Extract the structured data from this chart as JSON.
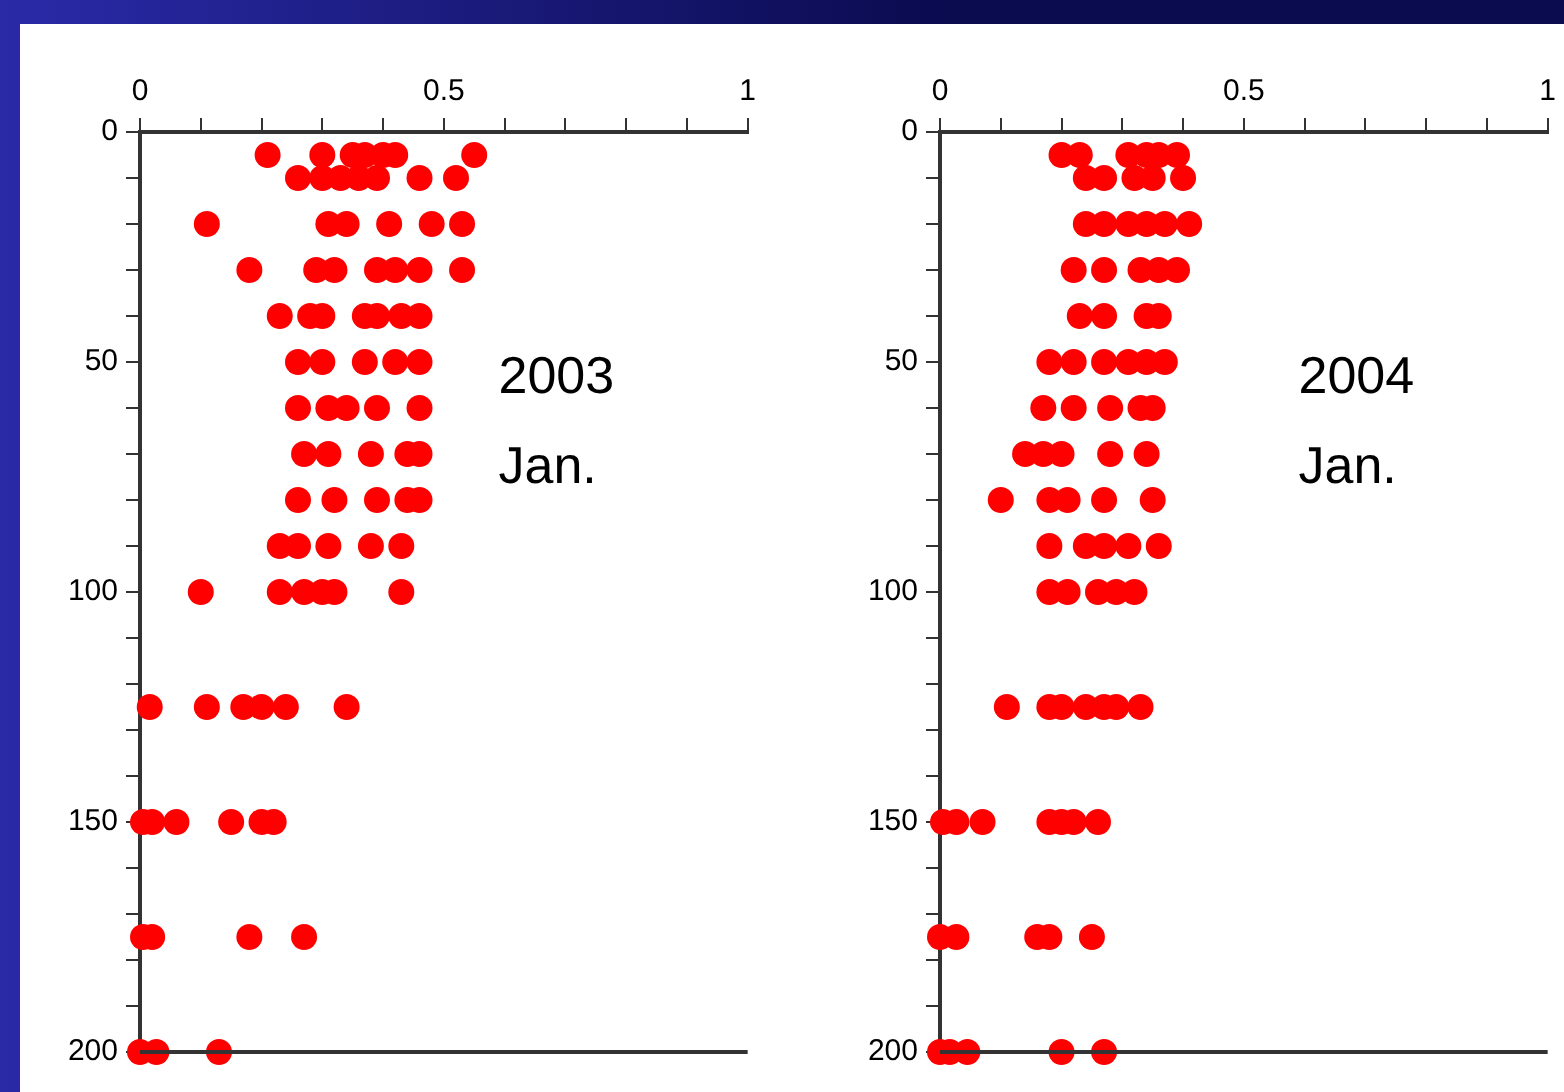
{
  "chart_data": [
    {
      "type": "scatter",
      "annotations": [
        "2003\nJan."
      ],
      "xlim": [
        0,
        1
      ],
      "xticks": [
        0,
        {
          "value": 0.1,
          "label": null
        },
        {
          "value": 0.2,
          "label": null
        },
        {
          "value": 0.3,
          "label": null
        },
        {
          "value": 0.4,
          "label": null
        },
        0.5,
        {
          "value": 0.6,
          "label": null
        },
        {
          "value": 0.7,
          "label": null
        },
        {
          "value": 0.8,
          "label": null
        },
        {
          "value": 0.9,
          "label": null
        },
        1
      ],
      "ylim": [
        200,
        0
      ],
      "yticks": [
        0,
        {
          "value": 10,
          "label": null
        },
        {
          "value": 20,
          "label": null
        },
        {
          "value": 30,
          "label": null
        },
        {
          "value": 40,
          "label": null
        },
        50,
        {
          "value": 60,
          "label": null
        },
        {
          "value": 70,
          "label": null
        },
        {
          "value": 80,
          "label": null
        },
        {
          "value": 90,
          "label": null
        },
        100,
        {
          "value": 110,
          "label": null
        },
        {
          "value": 120,
          "label": null
        },
        {
          "value": 130,
          "label": null
        },
        {
          "value": 140,
          "label": null
        },
        150,
        {
          "value": 160,
          "label": null
        },
        {
          "value": 170,
          "label": null
        },
        {
          "value": 180,
          "label": null
        },
        {
          "value": 190,
          "label": null
        },
        200
      ],
      "grid": false,
      "legend": false,
      "marker": "circle",
      "series": [
        {
          "color": "#ff0000",
          "x": [
            0.21,
            0.3,
            0.35,
            0.37,
            0.4,
            0.42,
            0.55,
            0.26,
            0.3,
            0.33,
            0.36,
            0.39,
            0.46,
            0.52,
            0.11,
            0.31,
            0.34,
            0.41,
            0.48,
            0.53,
            0.18,
            0.29,
            0.32,
            0.39,
            0.42,
            0.46,
            0.53,
            0.23,
            0.28,
            0.3,
            0.37,
            0.39,
            0.43,
            0.46,
            0.26,
            0.3,
            0.37,
            0.42,
            0.46,
            0.26,
            0.31,
            0.34,
            0.39,
            0.46,
            0.27,
            0.31,
            0.38,
            0.44,
            0.46,
            0.26,
            0.32,
            0.39,
            0.44,
            0.46,
            0.23,
            0.26,
            0.31,
            0.38,
            0.43,
            0.1,
            0.23,
            0.27,
            0.3,
            0.32,
            0.43,
            0.016,
            0.11,
            0.17,
            0.2,
            0.24,
            0.34,
            0.005,
            0.02,
            0.06,
            0.15,
            0.2,
            0.22,
            0.005,
            0.02,
            0.18,
            0.27,
            0.0,
            0.027,
            0.13
          ],
          "values": [
            5,
            5,
            5,
            5,
            5,
            5,
            5,
            10,
            10,
            10,
            10,
            10,
            10,
            10,
            20,
            20,
            20,
            20,
            20,
            20,
            30,
            30,
            30,
            30,
            30,
            30,
            30,
            40,
            40,
            40,
            40,
            40,
            40,
            40,
            50,
            50,
            50,
            50,
            50,
            60,
            60,
            60,
            60,
            60,
            70,
            70,
            70,
            70,
            70,
            80,
            80,
            80,
            80,
            80,
            90,
            90,
            90,
            90,
            90,
            100,
            100,
            100,
            100,
            100,
            100,
            125,
            125,
            125,
            125,
            125,
            125,
            150,
            150,
            150,
            150,
            150,
            150,
            175,
            175,
            175,
            175,
            200,
            200,
            200
          ]
        }
      ]
    },
    {
      "type": "scatter",
      "annotations": [
        "2004\nJan."
      ],
      "xlim": [
        0,
        1
      ],
      "xticks": [
        0,
        {
          "value": 0.1,
          "label": null
        },
        {
          "value": 0.2,
          "label": null
        },
        {
          "value": 0.3,
          "label": null
        },
        {
          "value": 0.4,
          "label": null
        },
        0.5,
        {
          "value": 0.6,
          "label": null
        },
        {
          "value": 0.7,
          "label": null
        },
        {
          "value": 0.8,
          "label": null
        },
        {
          "value": 0.9,
          "label": null
        },
        1
      ],
      "ylim": [
        200,
        0
      ],
      "yticks": [
        0,
        {
          "value": 10,
          "label": null
        },
        {
          "value": 20,
          "label": null
        },
        {
          "value": 30,
          "label": null
        },
        {
          "value": 40,
          "label": null
        },
        50,
        {
          "value": 60,
          "label": null
        },
        {
          "value": 70,
          "label": null
        },
        {
          "value": 80,
          "label": null
        },
        {
          "value": 90,
          "label": null
        },
        100,
        {
          "value": 110,
          "label": null
        },
        {
          "value": 120,
          "label": null
        },
        {
          "value": 130,
          "label": null
        },
        {
          "value": 140,
          "label": null
        },
        150,
        {
          "value": 160,
          "label": null
        },
        {
          "value": 170,
          "label": null
        },
        {
          "value": 180,
          "label": null
        },
        {
          "value": 190,
          "label": null
        },
        200
      ],
      "grid": false,
      "legend": false,
      "marker": "circle",
      "series": [
        {
          "color": "#ff0000",
          "x": [
            0.2,
            0.23,
            0.31,
            0.34,
            0.36,
            0.39,
            0.24,
            0.27,
            0.32,
            0.35,
            0.4,
            0.24,
            0.27,
            0.31,
            0.34,
            0.37,
            0.41,
            0.22,
            0.27,
            0.33,
            0.36,
            0.39,
            0.23,
            0.27,
            0.34,
            0.36,
            0.18,
            0.22,
            0.27,
            0.31,
            0.34,
            0.37,
            0.17,
            0.22,
            0.28,
            0.33,
            0.35,
            0.14,
            0.17,
            0.2,
            0.28,
            0.34,
            0.1,
            0.18,
            0.21,
            0.27,
            0.35,
            0.18,
            0.24,
            0.27,
            0.31,
            0.36,
            0.18,
            0.21,
            0.26,
            0.29,
            0.32,
            0.11,
            0.18,
            0.2,
            0.24,
            0.27,
            0.29,
            0.33,
            0.005,
            0.027,
            0.07,
            0.18,
            0.2,
            0.22,
            0.26,
            0.0,
            0.027,
            0.16,
            0.18,
            0.25,
            0.0,
            0.016,
            0.045,
            0.2,
            0.27
          ],
          "values": [
            5,
            5,
            5,
            5,
            5,
            5,
            10,
            10,
            10,
            10,
            10,
            20,
            20,
            20,
            20,
            20,
            20,
            30,
            30,
            30,
            30,
            30,
            40,
            40,
            40,
            40,
            50,
            50,
            50,
            50,
            50,
            50,
            60,
            60,
            60,
            60,
            60,
            70,
            70,
            70,
            70,
            70,
            80,
            80,
            80,
            80,
            80,
            90,
            90,
            90,
            90,
            90,
            100,
            100,
            100,
            100,
            100,
            125,
            125,
            125,
            125,
            125,
            125,
            125,
            150,
            150,
            150,
            150,
            150,
            150,
            150,
            175,
            175,
            175,
            175,
            175,
            200,
            200,
            200,
            200,
            200
          ]
        }
      ]
    }
  ]
}
